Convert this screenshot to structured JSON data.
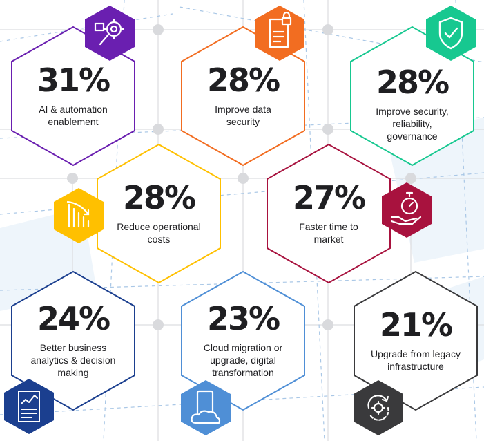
{
  "stats": [
    {
      "value": "31%",
      "label": "AI & automation enablement",
      "color": "#6a1fb0",
      "icon": "search-gear-icon"
    },
    {
      "value": "28%",
      "label": "Improve data security",
      "color": "#f26d21",
      "icon": "secure-document-icon"
    },
    {
      "value": "28%",
      "label": "Improve security, reliability, governance",
      "color": "#17c890",
      "icon": "shield-check-icon"
    },
    {
      "value": "28%",
      "label": "Reduce operational costs",
      "color": "#ffc000",
      "icon": "declining-bars-icon"
    },
    {
      "value": "27%",
      "label": "Faster time to market",
      "color": "#a8123e",
      "icon": "hand-stopwatch-icon"
    },
    {
      "value": "24%",
      "label": "Better business analytics & decision making",
      "color": "#1b3f8f",
      "icon": "analytics-report-icon"
    },
    {
      "value": "23%",
      "label": "Cloud migration or upgrade, digital transformation",
      "color": "#4f8fd6",
      "icon": "cloud-device-icon"
    },
    {
      "value": "21%",
      "label": "Upgrade from legacy infrastructure",
      "color": "#3a3a3c",
      "icon": "gear-refresh-icon"
    }
  ]
}
